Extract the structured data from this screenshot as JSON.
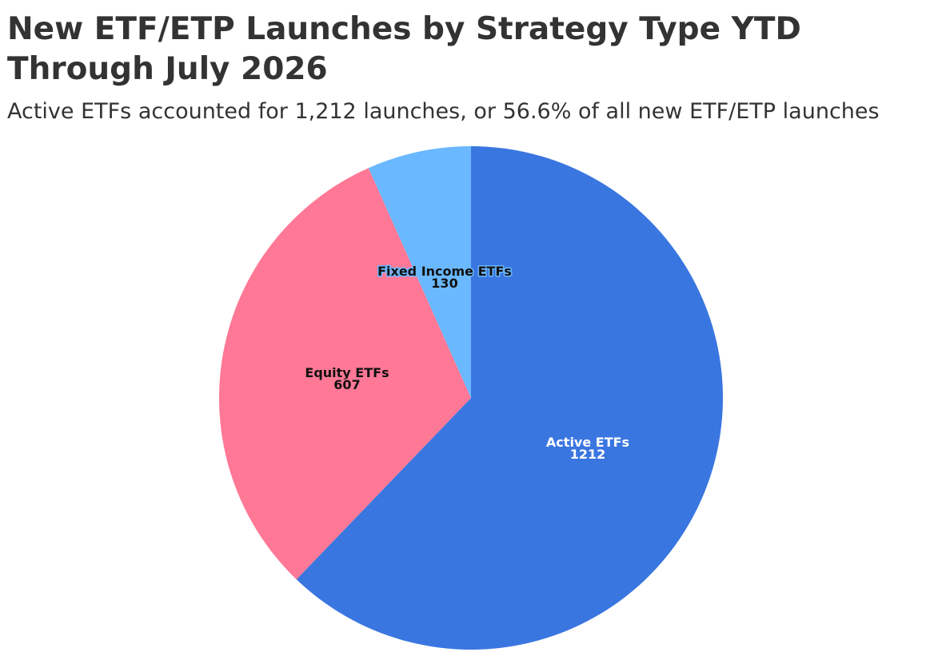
{
  "chart_data": {
    "type": "pie",
    "title": "New ETF/ETP Launches by Strategy Type YTD Through July 2026",
    "subtitle": "Active ETFs accounted for 1,212 launches, or 56.6% of all new ETF/ETP launches",
    "start_angle": "12 o'clock, clockwise",
    "slices": [
      {
        "label": "Active ETFs",
        "value": 1212,
        "color": "#3a76e0",
        "text_color": "#ffffff",
        "halo": "#3a76e0"
      },
      {
        "label": "Equity ETFs",
        "value": 607,
        "color": "#ff7896",
        "text_color": "#111111",
        "halo": "#ff7896"
      },
      {
        "label": "Fixed Income ETFs",
        "value": 130,
        "color": "#6ab8ff",
        "text_color": "#111111",
        "halo": "#6ab8ff"
      }
    ]
  }
}
